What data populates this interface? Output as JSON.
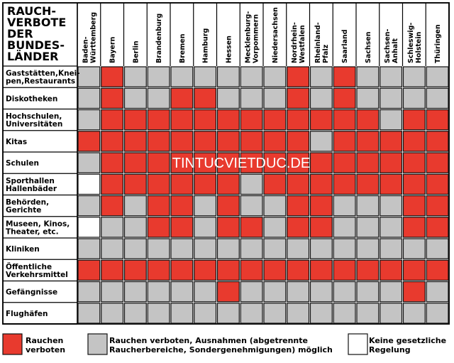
{
  "chart_data": {
    "type": "heatmap",
    "title_lines": [
      "RAUCH-",
      "VERBOTE",
      "DER",
      "BUNDES-",
      "LÄNDER"
    ],
    "columns": [
      {
        "lines": [
          "Baden-",
          "Württemberg"
        ]
      },
      {
        "lines": [
          "Bayern"
        ]
      },
      {
        "lines": [
          "Berlin"
        ]
      },
      {
        "lines": [
          "Brandenburg"
        ]
      },
      {
        "lines": [
          "Bremen"
        ]
      },
      {
        "lines": [
          "Hamburg"
        ]
      },
      {
        "lines": [
          "Hessen"
        ]
      },
      {
        "lines": [
          "Mecklenburg-",
          "Vorpommern"
        ]
      },
      {
        "lines": [
          "Niedersachsen"
        ]
      },
      {
        "lines": [
          "Nordrhein-",
          "Westfalen"
        ]
      },
      {
        "lines": [
          "Rheinland-",
          "Pfalz"
        ]
      },
      {
        "lines": [
          "Saarland"
        ]
      },
      {
        "lines": [
          "Sachsen"
        ]
      },
      {
        "lines": [
          "Sachsen-",
          "Anhalt"
        ]
      },
      {
        "lines": [
          "Schleswig-",
          "Holstein"
        ]
      },
      {
        "lines": [
          "Thüringen"
        ]
      }
    ],
    "rows": [
      {
        "lines": [
          "Gaststätten,Knei-",
          "pen,Restaurants"
        ],
        "values": [
          "g",
          "r",
          "g",
          "g",
          "g",
          "g",
          "g",
          "g",
          "g",
          "r",
          "g",
          "r",
          "g",
          "g",
          "g",
          "g"
        ]
      },
      {
        "lines": [
          "Diskotheken"
        ],
        "values": [
          "g",
          "r",
          "g",
          "g",
          "r",
          "r",
          "g",
          "g",
          "g",
          "r",
          "g",
          "r",
          "g",
          "g",
          "g",
          "g"
        ]
      },
      {
        "lines": [
          "Hochschulen,",
          "Universitäten"
        ],
        "values": [
          "g",
          "r",
          "r",
          "r",
          "r",
          "r",
          "r",
          "r",
          "r",
          "r",
          "r",
          "r",
          "r",
          "g",
          "r",
          "r"
        ]
      },
      {
        "lines": [
          "Kitas"
        ],
        "values": [
          "r",
          "r",
          "r",
          "r",
          "r",
          "r",
          "r",
          "r",
          "r",
          "r",
          "g",
          "r",
          "r",
          "r",
          "r",
          "r"
        ]
      },
      {
        "lines": [
          "Schulen"
        ],
        "values": [
          "g",
          "r",
          "r",
          "r",
          "r",
          "r",
          "r",
          "r",
          "r",
          "r",
          "r",
          "r",
          "r",
          "r",
          "r",
          "r"
        ]
      },
      {
        "lines": [
          "Sporthallen",
          "Hallenbäder"
        ],
        "values": [
          "w",
          "r",
          "r",
          "r",
          "r",
          "r",
          "r",
          "g",
          "r",
          "r",
          "r",
          "r",
          "r",
          "r",
          "r",
          "r"
        ]
      },
      {
        "lines": [
          "Behörden,",
          "Gerichte"
        ],
        "values": [
          "g",
          "r",
          "g",
          "r",
          "r",
          "g",
          "r",
          "g",
          "g",
          "r",
          "r",
          "g",
          "g",
          "g",
          "r",
          "r"
        ]
      },
      {
        "lines": [
          "Museen, Kinos,",
          "Theater, etc."
        ],
        "values": [
          "w",
          "g",
          "g",
          "r",
          "r",
          "g",
          "r",
          "r",
          "g",
          "r",
          "r",
          "g",
          "g",
          "g",
          "r",
          "r"
        ]
      },
      {
        "lines": [
          "Kliniken"
        ],
        "values": [
          "g",
          "g",
          "g",
          "g",
          "g",
          "g",
          "g",
          "g",
          "g",
          "g",
          "g",
          "g",
          "g",
          "g",
          "g",
          "g"
        ]
      },
      {
        "lines": [
          "Öffentliche",
          "Verkehrsmittel"
        ],
        "values": [
          "r",
          "r",
          "r",
          "r",
          "r",
          "r",
          "r",
          "r",
          "r",
          "r",
          "r",
          "r",
          "r",
          "r",
          "r",
          "r"
        ]
      },
      {
        "lines": [
          "Gefängnisse"
        ],
        "values": [
          "g",
          "g",
          "g",
          "g",
          "g",
          "g",
          "r",
          "g",
          "g",
          "g",
          "g",
          "g",
          "g",
          "g",
          "r",
          "g"
        ]
      },
      {
        "lines": [
          "Flughäfen"
        ],
        "values": [
          "g",
          "g",
          "g",
          "g",
          "g",
          "g",
          "g",
          "g",
          "g",
          "g",
          "g",
          "g",
          "g",
          "g",
          "g",
          "g"
        ]
      }
    ],
    "legend": [
      {
        "key": "r",
        "lines": [
          "Rauchen",
          "verboten"
        ]
      },
      {
        "key": "g",
        "lines": [
          "Rauchen verboten, Ausnahmen (abgetrennte",
          "Raucherbereiche, Sondergenehmigungen) möglich"
        ]
      },
      {
        "key": "w",
        "lines": [
          "Keine gesetzliche",
          "Regelung"
        ]
      }
    ],
    "watermark": "TINTUCVIETDUC.DE",
    "colors": {
      "r": "#e83a2e",
      "g": "#c4c4c4",
      "w": "#ffffff",
      "border": "#111111",
      "divider": "#000000"
    }
  }
}
